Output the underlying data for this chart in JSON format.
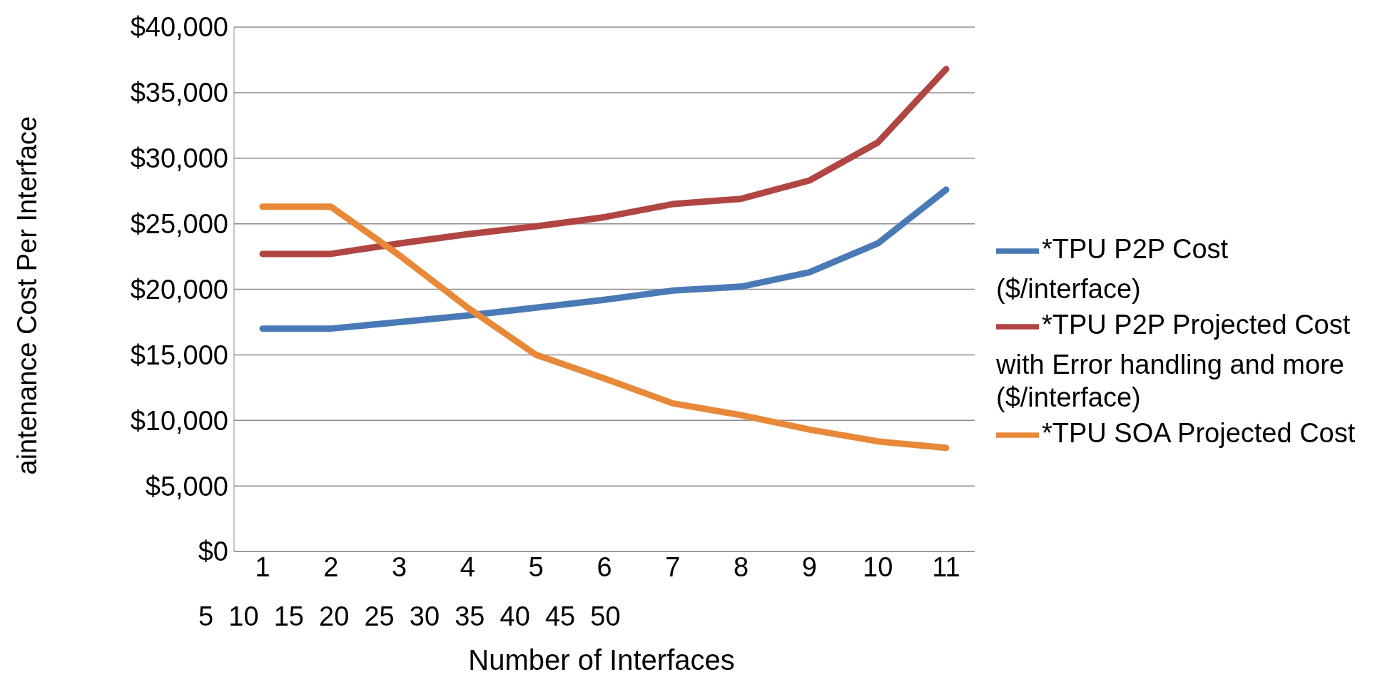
{
  "chart_data": {
    "type": "line",
    "xlabel": "Number of Interfaces",
    "ylabel": "aintenance Cost Per Interface",
    "categories": [
      "1",
      "2",
      "3",
      "4",
      "5",
      "6",
      "7",
      "8",
      "9",
      "10",
      "11"
    ],
    "series": [
      {
        "name": "*TPU P2P Cost ($/interface)",
        "color": "#4a7ab5",
        "values": [
          17000,
          17000,
          17500,
          18000,
          18600,
          19200,
          19900,
          20200,
          21300,
          23500,
          27600
        ]
      },
      {
        "name": "*TPU P2P Projected Cost with Error handling and more ($/interface)",
        "color": "#b04542",
        "values": [
          22700,
          22700,
          23500,
          24200,
          24800,
          25500,
          26500,
          26900,
          28300,
          31200,
          36800
        ]
      },
      {
        "name": "*TPU SOA Projected Cost",
        "color": "#e8893a",
        "values": [
          26300,
          26300,
          22600,
          18600,
          15000,
          13200,
          11300,
          10400,
          9300,
          8400,
          7900
        ]
      }
    ],
    "ylim": [
      0,
      40000
    ],
    "yticks": [
      {
        "value": 0,
        "label": "$0"
      },
      {
        "value": 5000,
        "label": "$5,000"
      },
      {
        "value": 10000,
        "label": "$10,000"
      },
      {
        "value": 15000,
        "label": "$15,000"
      },
      {
        "value": 20000,
        "label": "$20,000"
      },
      {
        "value": 25000,
        "label": "$25,000"
      },
      {
        "value": 30000,
        "label": "$30,000"
      },
      {
        "value": 35000,
        "label": "$35,000"
      },
      {
        "value": 40000,
        "label": "$40,000"
      }
    ],
    "grid": "y",
    "legend": "right",
    "marker": "none",
    "line_style": "solid",
    "annotations": [
      "5  10  15  20  25  30  35  40  45  50"
    ]
  }
}
